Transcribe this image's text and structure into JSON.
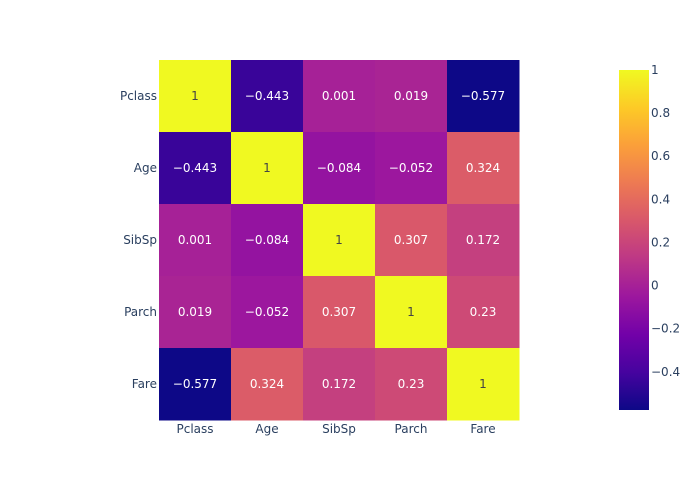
{
  "chart_data": {
    "type": "heatmap",
    "title": "",
    "xlabel": "",
    "ylabel": "",
    "x_categories": [
      "Pclass",
      "Age",
      "SibSp",
      "Parch",
      "Fare"
    ],
    "y_categories": [
      "Pclass",
      "Age",
      "SibSp",
      "Parch",
      "Fare"
    ],
    "values": [
      [
        1,
        -0.443,
        0.001,
        0.019,
        -0.577
      ],
      [
        -0.443,
        1,
        -0.084,
        -0.052,
        0.324
      ],
      [
        0.001,
        -0.084,
        1,
        0.307,
        0.172
      ],
      [
        0.019,
        -0.052,
        0.307,
        1,
        0.23
      ],
      [
        -0.577,
        0.324,
        0.172,
        0.23,
        1
      ]
    ],
    "value_labels": [
      [
        "1",
        "−0.443",
        "0.001",
        "0.019",
        "−0.577"
      ],
      [
        "−0.443",
        "1",
        "−0.084",
        "−0.052",
        "0.324"
      ],
      [
        "0.001",
        "−0.084",
        "1",
        "0.307",
        "0.172"
      ],
      [
        "0.019",
        "−0.052",
        "0.307",
        "1",
        "0.23"
      ],
      [
        "−0.577",
        "0.324",
        "0.172",
        "0.23",
        "1"
      ]
    ],
    "zmin": -0.577,
    "zmax": 1,
    "colorscale": "plasma",
    "colorbar": {
      "tick_values": [
        1,
        0.8,
        0.6,
        0.4,
        0.2,
        0,
        -0.2,
        -0.4
      ],
      "tick_labels": [
        "1",
        "0.8",
        "0.6",
        "0.4",
        "0.2",
        "0",
        "−0.2",
        "−0.4"
      ]
    },
    "grid": false
  }
}
